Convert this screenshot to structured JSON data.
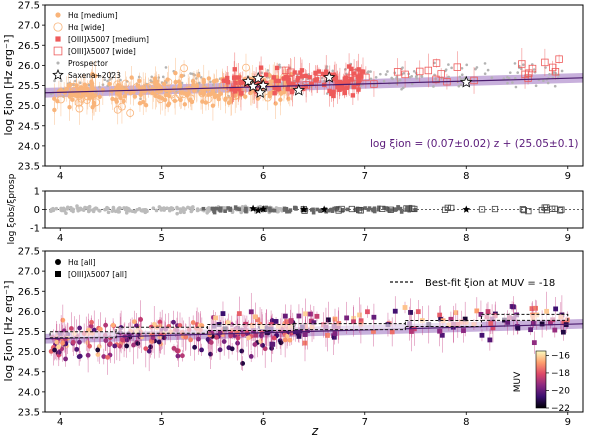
{
  "figure": {
    "xlabel": "z",
    "panels": [
      {
        "ylabel": "log ξion [Hz erg⁻¹]",
        "legend": [
          "Hα [medium]",
          "Hα [wide]",
          "[OIII]λ5007 [medium]",
          "[OIII]λ5007 [wide]",
          "Prospector",
          "Saxena+2023"
        ],
        "annotation": "log ξion = (0.07±0.02) z + (25.05±0.1)"
      },
      {
        "ylabel": "log ξobs/ξprosp"
      },
      {
        "ylabel": "log ξion [Hz erg⁻¹]",
        "legend": [
          "Hα [all]",
          "[OIII]λ5007 [all]"
        ],
        "fit_legend": "Best-fit ξion at MUV = -18",
        "colorbar_label": "MUV",
        "colorbar_ticks": [
          "-16",
          "-18",
          "-20",
          "-22"
        ]
      }
    ]
  },
  "chart_data": [
    {
      "type": "scatter",
      "xlim": [
        3.85,
        9.15
      ],
      "ylim": [
        23.5,
        27.5
      ],
      "xticks": [
        4,
        5,
        6,
        7,
        8,
        9
      ],
      "yticks": [
        23.5,
        24.0,
        24.5,
        25.0,
        25.5,
        26.0,
        26.5,
        27.0,
        27.5
      ],
      "fit": {
        "slope": 0.07,
        "slope_err": 0.02,
        "intercept": 25.05,
        "intercept_err": 0.1,
        "x_range": [
          3.85,
          9.15
        ]
      },
      "series": [
        {
          "name": "Hα [medium]",
          "color": "#f9b47a",
          "marker": "circle",
          "x_range": [
            3.9,
            6.3
          ],
          "y_center": 25.35,
          "y_scatter": 0.18,
          "count": 230
        },
        {
          "name": "Hα [wide]",
          "color": "#f9b47a",
          "marker": "open-circle",
          "x_range": [
            4.0,
            6.3
          ],
          "y_center": 25.3,
          "y_scatter": 0.22,
          "count": 55
        },
        {
          "name": "[OIII]λ5007 [medium]",
          "color": "#ee5a5a",
          "marker": "square",
          "x_range": [
            5.6,
            7.0
          ],
          "y_center": 25.5,
          "y_scatter": 0.18,
          "count": 120
        },
        {
          "name": "[OIII]λ5007 [wide]",
          "color": "#ee5a5a",
          "marker": "open-square",
          "x_range": [
            6.2,
            9.0
          ],
          "y_center": 25.6,
          "y_scatter": 0.15,
          "count": 30
        },
        {
          "name": "Prospector",
          "color": "#b3b3b3",
          "marker": "small-circle",
          "x_range": [
            3.9,
            9.0
          ],
          "y_center": 25.55,
          "y_scatter": 0.15,
          "count": 260
        }
      ],
      "saxena2023": [
        {
          "x": 5.85,
          "y": 25.6
        },
        {
          "x": 5.95,
          "y": 25.68
        },
        {
          "x": 5.9,
          "y": 25.48
        },
        {
          "x": 6.0,
          "y": 25.5
        },
        {
          "x": 5.97,
          "y": 25.32
        },
        {
          "x": 6.35,
          "y": 25.38
        },
        {
          "x": 6.65,
          "y": 25.7
        },
        {
          "x": 8.0,
          "y": 25.58
        }
      ]
    },
    {
      "type": "scatter",
      "xlim": [
        3.85,
        9.15
      ],
      "ylim": [
        -1,
        1
      ],
      "xticks": [
        4,
        5,
        6,
        7,
        8,
        9
      ],
      "yticks": [
        -1,
        0,
        1
      ],
      "reference_line": 0,
      "series": [
        {
          "name": "Hα",
          "color": "#bbbbbb",
          "marker": "circle",
          "x_range": [
            3.9,
            6.2
          ],
          "y_center": 0.0,
          "y_scatter": 0.08,
          "count": 190
        },
        {
          "name": "[OIII]λ5007",
          "color": "#666666",
          "marker": "square",
          "x_range": [
            5.4,
            7.5
          ],
          "y_center": 0.0,
          "y_scatter": 0.07,
          "count": 110
        },
        {
          "name": "[OIII]λ5007 [wide]",
          "color": "#444444",
          "marker": "open-square",
          "x_range": [
            6.3,
            9.0
          ],
          "y_center": 0.0,
          "y_scatter": 0.05,
          "count": 28
        }
      ],
      "stars": [
        {
          "x": 5.9,
          "y": 0.05
        },
        {
          "x": 5.95,
          "y": -0.05
        },
        {
          "x": 6.0,
          "y": 0.02
        },
        {
          "x": 6.4,
          "y": 0.0
        },
        {
          "x": 6.6,
          "y": 0.0
        },
        {
          "x": 8.0,
          "y": 0.0
        }
      ]
    },
    {
      "type": "scatter",
      "xlim": [
        3.85,
        9.15
      ],
      "ylim": [
        23.5,
        27.5
      ],
      "xticks": [
        4,
        5,
        6,
        7,
        8,
        9
      ],
      "yticks": [
        23.5,
        24.0,
        24.5,
        25.0,
        25.5,
        26.0,
        26.5,
        27.0,
        27.5
      ],
      "fit": {
        "slope": 0.07,
        "intercept": 25.05,
        "band": 0.1
      },
      "colormap": "magma",
      "colorbar_range": [
        -22,
        -15.5
      ],
      "series": [
        {
          "name": "Hα [all]",
          "marker": "circle",
          "x_range": [
            3.9,
            6.3
          ],
          "y_center": 25.35,
          "y_scatter": 0.22,
          "count": 230
        },
        {
          "name": "[OIII]λ5007 [all]",
          "marker": "square",
          "x_range": [
            5.5,
            9.0
          ],
          "y_center": 25.55,
          "y_scatter": 0.18,
          "count": 140
        }
      ],
      "bestfit_steps": [
        {
          "x0": 3.9,
          "x1": 4.55,
          "y": 25.42
        },
        {
          "x0": 4.55,
          "x1": 5.45,
          "y": 25.53
        },
        {
          "x0": 5.45,
          "x1": 6.3,
          "y": 25.6
        },
        {
          "x0": 6.3,
          "x1": 7.4,
          "y": 25.62
        },
        {
          "x0": 7.4,
          "x1": 8.15,
          "y": 25.7
        },
        {
          "x0": 8.15,
          "x1": 9.0,
          "y": 25.85
        }
      ]
    }
  ]
}
